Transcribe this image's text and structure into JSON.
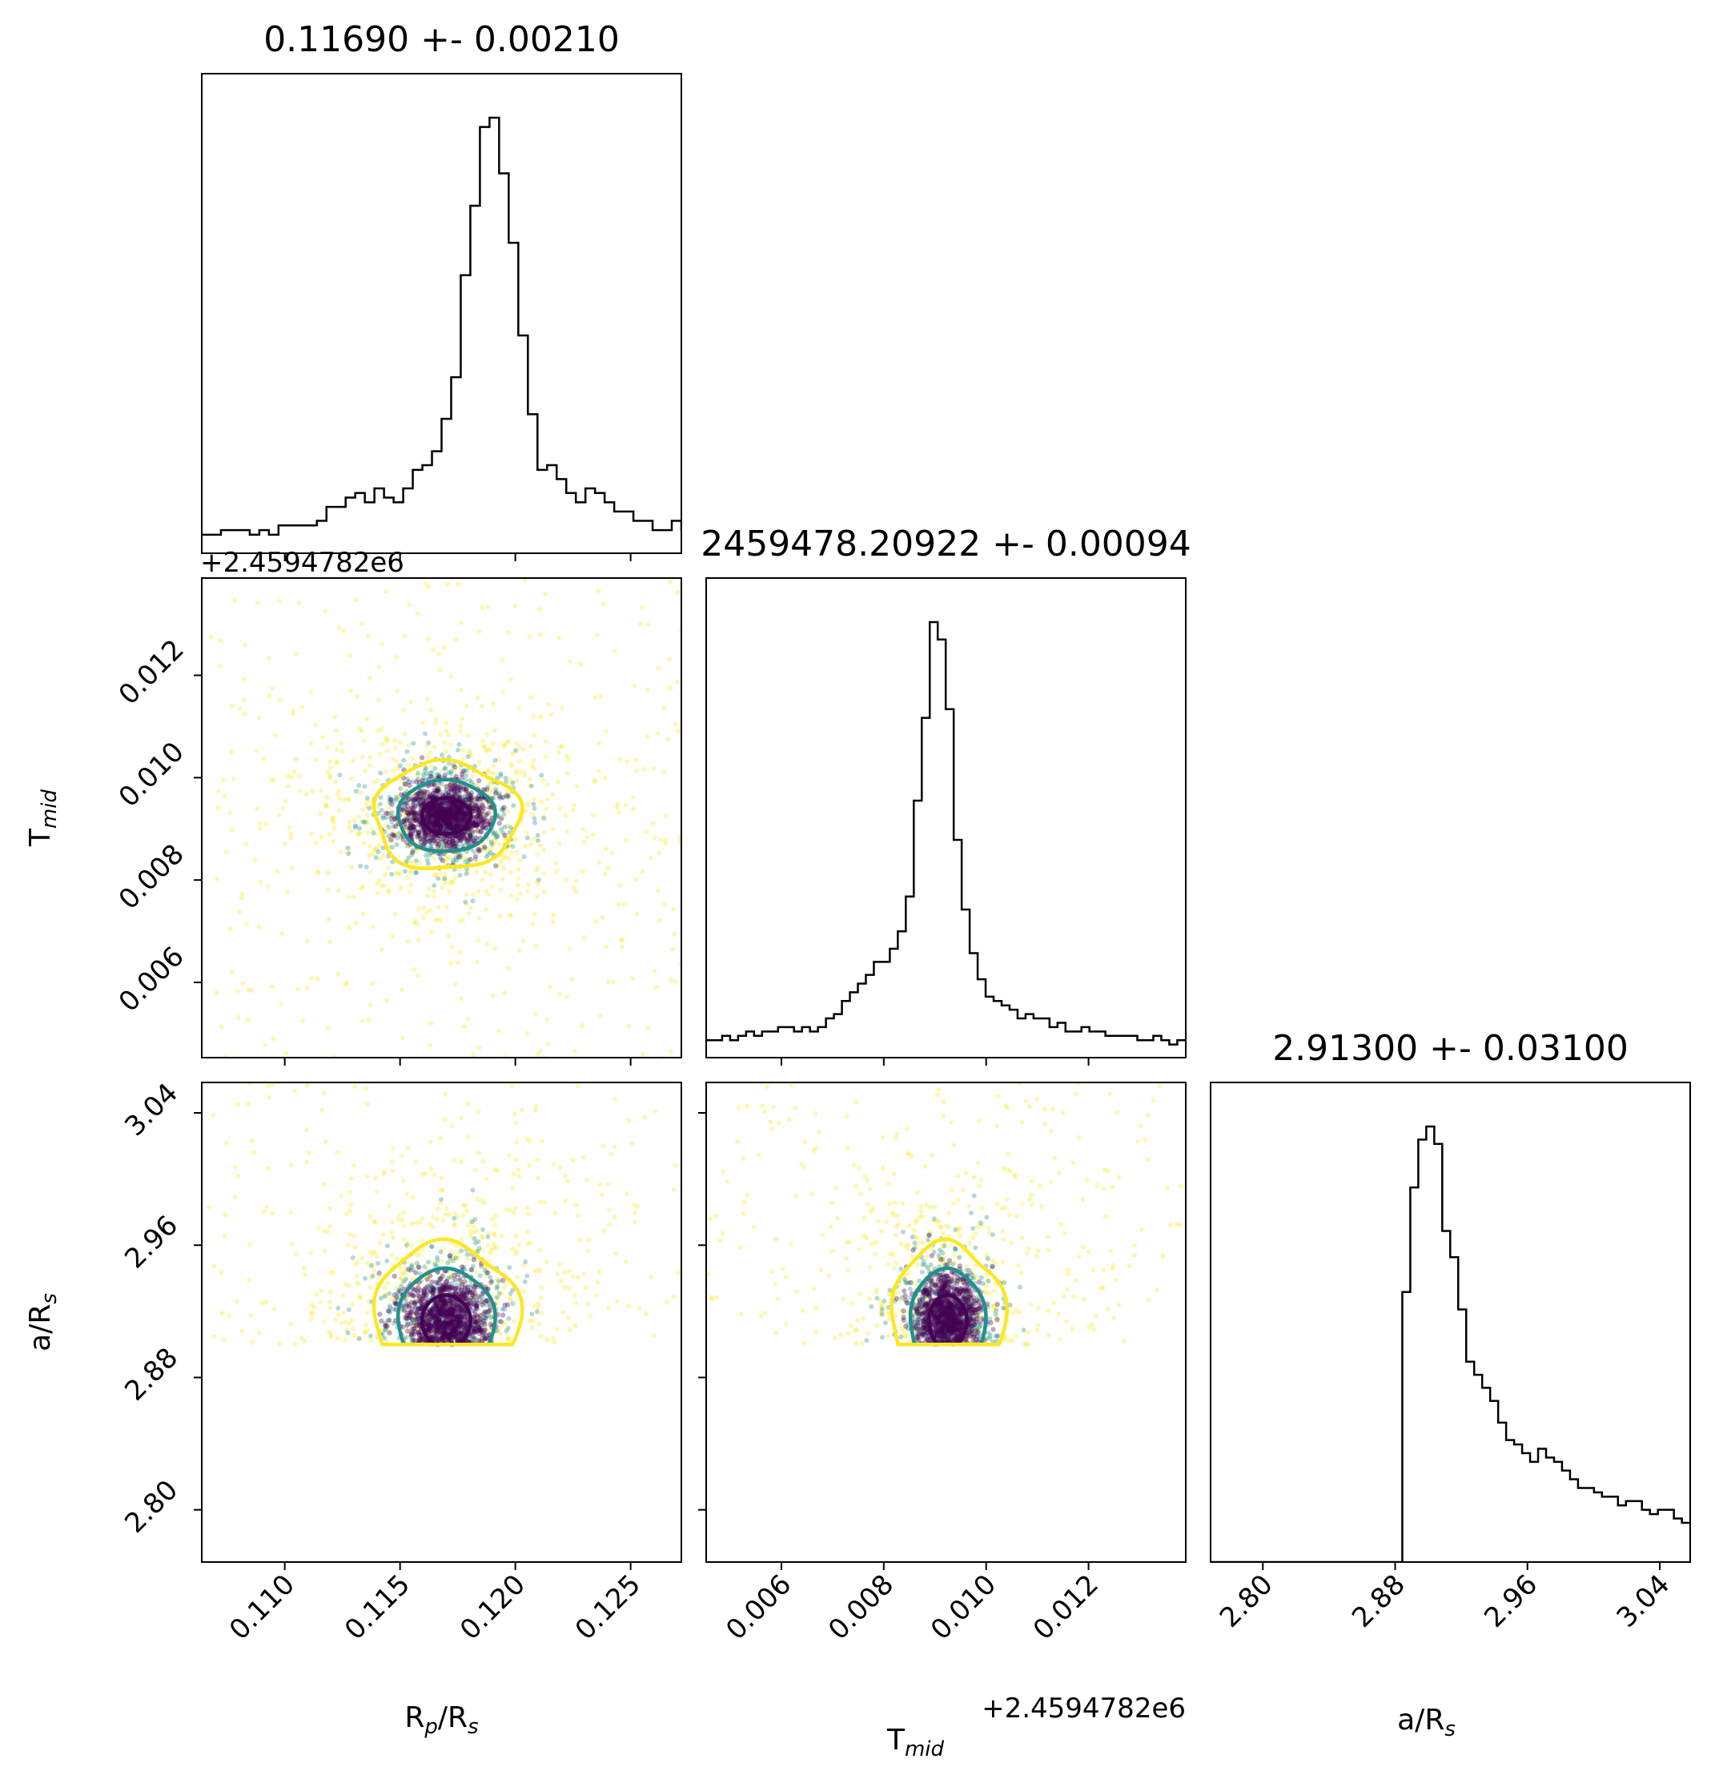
{
  "chart_data": {
    "type": "corner",
    "parameters": [
      {
        "key": "rp",
        "label_main": "R",
        "label_sub": "p",
        "label_tail": "/R",
        "label_sub2": "s",
        "range": [
          0.1064,
          0.1272
        ],
        "ticks": [
          "0.110",
          "0.115",
          "0.120",
          "0.125"
        ],
        "tick_values": [
          0.11,
          0.115,
          0.12,
          0.125
        ],
        "title": "0.11690 +- 0.00210"
      },
      {
        "key": "tmid",
        "label_main": "T",
        "label_sub": "mid",
        "label_tail": "",
        "label_sub2": "",
        "range": [
          0.00453,
          0.0139
        ],
        "ticks": [
          "0.006",
          "0.008",
          "0.010",
          "0.012"
        ],
        "tick_values": [
          0.006,
          0.008,
          0.01,
          0.012
        ],
        "offset_text": "+2.4594782e6",
        "title": "2459478.20922 +- 0.00094"
      },
      {
        "key": "ars",
        "label_main": "a/R",
        "label_sub": "s",
        "label_tail": "",
        "label_sub2": "",
        "range": [
          2.7684,
          3.0584
        ],
        "ticks": [
          "2.80",
          "2.88",
          "2.96",
          "3.04"
        ],
        "tick_values": [
          2.8,
          2.88,
          2.96,
          3.04
        ],
        "title": "2.91300 +- 0.03100"
      }
    ],
    "histograms": {
      "rp": {
        "bin_start": 0.1064,
        "bin_width": 0.000416,
        "counts": [
          0.04,
          0.04,
          0.05,
          0.05,
          0.05,
          0.04,
          0.05,
          0.04,
          0.06,
          0.06,
          0.06,
          0.06,
          0.07,
          0.1,
          0.1,
          0.12,
          0.13,
          0.11,
          0.14,
          0.12,
          0.11,
          0.14,
          0.18,
          0.19,
          0.22,
          0.29,
          0.38,
          0.6,
          0.75,
          0.92,
          0.94,
          0.82,
          0.67,
          0.47,
          0.3,
          0.18,
          0.19,
          0.16,
          0.13,
          0.11,
          0.14,
          0.13,
          0.11,
          0.09,
          0.09,
          0.07,
          0.07,
          0.05,
          0.05,
          0.07,
          0.05,
          0.05,
          0.06,
          0.04,
          0.05,
          0.04,
          0.05,
          0.05,
          0.04,
          0.03
        ]
      },
      "tmid": {
        "bin_start": 0.00453,
        "bin_width": 0.000156,
        "counts": [
          0.04,
          0.04,
          0.05,
          0.04,
          0.05,
          0.06,
          0.05,
          0.06,
          0.06,
          0.07,
          0.07,
          0.06,
          0.07,
          0.06,
          0.07,
          0.09,
          0.1,
          0.13,
          0.15,
          0.17,
          0.19,
          0.22,
          0.22,
          0.25,
          0.29,
          0.37,
          0.59,
          0.78,
          1.0,
          0.96,
          0.8,
          0.5,
          0.34,
          0.24,
          0.18,
          0.14,
          0.13,
          0.12,
          0.11,
          0.09,
          0.1,
          0.09,
          0.09,
          0.07,
          0.08,
          0.06,
          0.06,
          0.07,
          0.06,
          0.06,
          0.05,
          0.05,
          0.05,
          0.05,
          0.04,
          0.04,
          0.05,
          0.04,
          0.03,
          0.04
        ]
      },
      "ars": {
        "bin_start": 2.7684,
        "bin_width": 0.00483,
        "counts": [
          0,
          0,
          0,
          0,
          0,
          0,
          0,
          0,
          0,
          0,
          0,
          0,
          0,
          0,
          0,
          0,
          0,
          0,
          0,
          0,
          0,
          0,
          0,
          0,
          0.62,
          0.86,
          0.97,
          1.0,
          0.96,
          0.76,
          0.7,
          0.58,
          0.46,
          0.43,
          0.4,
          0.37,
          0.32,
          0.28,
          0.27,
          0.25,
          0.23,
          0.26,
          0.24,
          0.23,
          0.21,
          0.19,
          0.17,
          0.17,
          0.16,
          0.15,
          0.15,
          0.13,
          0.14,
          0.14,
          0.12,
          0.11,
          0.12,
          0.12,
          0.1,
          0.09
        ]
      }
    },
    "pairs": [
      {
        "x": "rp",
        "y": "tmid",
        "center": [
          0.117,
          0.00925
        ],
        "sigma": [
          0.001,
          0.00035
        ]
      },
      {
        "x": "rp",
        "y": "ars",
        "center": [
          0.117,
          2.914
        ],
        "sigma": [
          0.001,
          0.015
        ]
      },
      {
        "x": "tmid",
        "y": "ars",
        "center": [
          0.00925,
          2.914
        ],
        "sigma": [
          0.00035,
          0.015
        ]
      }
    ],
    "ars_lower_bound": 2.9,
    "contour_levels": [
      "1-sigma",
      "2-sigma",
      "3-sigma"
    ],
    "colors": {
      "inner": "#440154",
      "middle": "#21918c",
      "outer": "#fde725",
      "line": "#000000"
    }
  }
}
